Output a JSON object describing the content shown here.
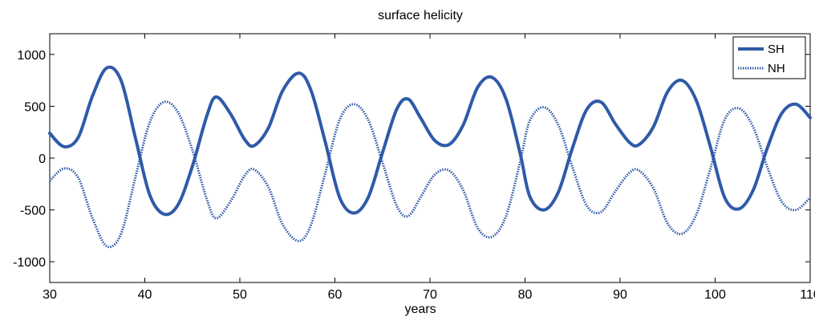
{
  "chart_data": {
    "type": "line",
    "title": "surface helicity",
    "xlabel": "years",
    "ylabel": "",
    "xlim": [
      30,
      110
    ],
    "ylim": [
      -1200,
      1200
    ],
    "xticks": [
      30,
      40,
      50,
      60,
      70,
      80,
      90,
      100,
      110
    ],
    "yticks": [
      -1000,
      -500,
      0,
      500,
      1000
    ],
    "grid": false,
    "legend_position": "top-right",
    "series": [
      {
        "name": "SH",
        "style": "solid",
        "color": "#2f5aa8",
        "x": [
          30,
          31.5,
          33,
          34.5,
          36,
          37.5,
          39,
          40.5,
          42,
          43.5,
          45,
          46.5,
          47.5,
          49,
          50.5,
          51.5,
          53,
          54.5,
          56.2,
          57.5,
          59,
          60.5,
          62,
          63.5,
          65,
          66.5,
          67.7,
          69,
          70.5,
          72,
          73.5,
          75,
          76.5,
          78,
          79.5,
          80.5,
          82,
          83.5,
          85,
          86.5,
          88,
          89.5,
          91,
          92,
          93.5,
          95,
          96.5,
          98,
          99.5,
          101,
          102.5,
          104,
          105.5,
          107,
          108.5,
          110
        ],
        "y": [
          240,
          110,
          200,
          600,
          870,
          750,
          200,
          -350,
          -540,
          -450,
          -80,
          400,
          590,
          430,
          180,
          120,
          290,
          650,
          820,
          650,
          150,
          -380,
          -530,
          -380,
          50,
          470,
          570,
          390,
          170,
          130,
          320,
          680,
          780,
          570,
          40,
          -370,
          -500,
          -330,
          100,
          470,
          540,
          330,
          150,
          130,
          300,
          640,
          750,
          560,
          110,
          -380,
          -490,
          -310,
          100,
          430,
          520,
          390
        ]
      },
      {
        "name": "NH",
        "style": "dotted",
        "color": "#2f5aa8",
        "x": [
          30,
          31.5,
          33,
          34.5,
          36,
          37.5,
          39,
          40.5,
          42,
          43.5,
          45,
          46.5,
          47.5,
          49,
          50.5,
          51.5,
          53,
          54.5,
          56.2,
          57.5,
          59,
          60.5,
          62,
          63.5,
          65,
          66.5,
          67.7,
          69,
          70.5,
          72,
          73.5,
          75,
          76.5,
          78,
          79.5,
          80.5,
          82,
          83.5,
          85,
          86.5,
          88,
          89.5,
          91,
          92,
          93.5,
          95,
          96.5,
          98,
          99.5,
          101,
          102.5,
          104,
          105.5,
          107,
          108.5,
          110
        ],
        "y": [
          -220,
          -100,
          -190,
          -580,
          -850,
          -730,
          -190,
          340,
          540,
          440,
          80,
          -390,
          -580,
          -420,
          -170,
          -110,
          -280,
          -640,
          -800,
          -640,
          -140,
          370,
          520,
          370,
          -40,
          -460,
          -560,
          -380,
          -160,
          -120,
          -310,
          -670,
          -760,
          -560,
          -30,
          360,
          490,
          320,
          -90,
          -460,
          -520,
          -320,
          -140,
          -120,
          -290,
          -630,
          -730,
          -550,
          -100,
          370,
          480,
          300,
          -90,
          -420,
          -500,
          -380
        ]
      }
    ]
  }
}
